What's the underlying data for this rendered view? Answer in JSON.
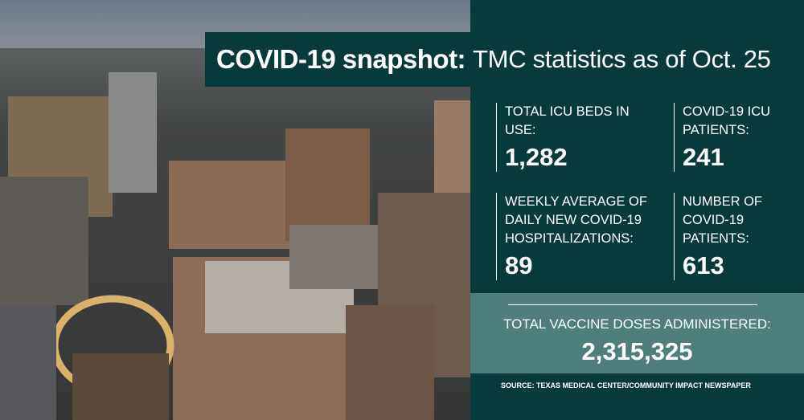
{
  "title": {
    "bold": "COVID-19 snapshot:",
    "rest": "TMC statistics as of Oct. 25"
  },
  "stats": [
    {
      "label": "TOTAL ICU BEDS IN USE:",
      "value": "1,282"
    },
    {
      "label": "COVID-19 ICU PATIENTS:",
      "value": "241"
    },
    {
      "label": "WEEKLY AVERAGE OF DAILY NEW COVID-19 HOSPITALIZATIONS:",
      "value": "89"
    },
    {
      "label": "NUMBER OF COVID-19 PATIENTS:",
      "value": "613"
    }
  ],
  "vaccine": {
    "label": "TOTAL VACCINE DOSES ADMINISTERED:",
    "value": "2,315,325"
  },
  "source": "SOURCE: TEXAS MEDICAL CENTER/COMMUNITY IMPACT NEWSPAPER"
}
